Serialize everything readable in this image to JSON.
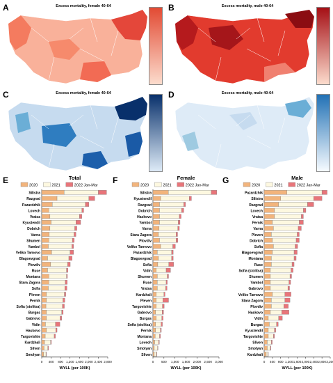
{
  "panels": {
    "A": {
      "label": "A",
      "title": "Excess mortality, female 40-64"
    },
    "B": {
      "label": "B",
      "title": "Excess mortality, male 40-64"
    },
    "C": {
      "label": "C",
      "title": "Excess mortality, female 40-64"
    },
    "D": {
      "label": "D",
      "title": "Excess mortality, male 40-64"
    },
    "E": {
      "label": "E"
    },
    "F": {
      "label": "F"
    },
    "G": {
      "label": "G"
    }
  },
  "colors": {
    "c2020": "#f2b47c",
    "c2021": "#fdf8e0",
    "c2022": "#e8757a",
    "red_light": "#fbd5c6",
    "red_dark": "#a50f15",
    "blue_light": "#deebf7",
    "blue_dark": "#08306b"
  },
  "chart_data": [
    {
      "type": "bar",
      "orientation": "horizontal",
      "stacked": true,
      "title": "Total",
      "xlabel": "WYLL (per 100K)",
      "xlim": [
        0,
        2800
      ],
      "xticks": [
        "0",
        "400",
        "800",
        "1,200",
        "1,600",
        "2,000",
        "2,400",
        "2,800"
      ],
      "legend": [
        "2020",
        "2021",
        "2022 Jan-Mar"
      ],
      "categories": [
        "Silistra",
        "Razgrad",
        "Pazardzhik",
        "Lovech",
        "Vratsa",
        "Kyustendil",
        "Dobrich",
        "Varna",
        "Shumen",
        "Yambol",
        "Veliko Tarnovo",
        "Blagoevgrad",
        "Plovdiv",
        "Ruse",
        "Montana",
        "Stara Zagora",
        "Sofia",
        "Pleven",
        "Pernik",
        "Sofia (stolitsa)",
        "Burgas",
        "Gabrovo",
        "Vidin",
        "Haskovo",
        "Targovishte",
        "Kardzhali",
        "Sliven",
        "Smolyan"
      ],
      "series": [
        {
          "name": "2020",
          "values": [
            950,
            650,
            450,
            300,
            350,
            400,
            350,
            320,
            300,
            280,
            420,
            250,
            380,
            250,
            300,
            300,
            280,
            200,
            200,
            180,
            200,
            200,
            160,
            200,
            150,
            120,
            100,
            80
          ]
        },
        {
          "name": "2021",
          "values": [
            1450,
            1350,
            1400,
            1400,
            1250,
            1050,
            1050,
            1050,
            1000,
            1000,
            780,
            900,
            720,
            800,
            750,
            700,
            700,
            760,
            700,
            700,
            650,
            580,
            420,
            400,
            380,
            260,
            160,
            100
          ]
        },
        {
          "name": "2022 Jan-Mar",
          "values": [
            350,
            250,
            150,
            80,
            100,
            200,
            90,
            80,
            80,
            70,
            150,
            140,
            110,
            60,
            40,
            80,
            90,
            60,
            80,
            80,
            60,
            70,
            190,
            50,
            50,
            30,
            30,
            20
          ]
        }
      ]
    },
    {
      "type": "bar",
      "orientation": "horizontal",
      "stacked": true,
      "title": "Female",
      "xlabel": "WYLL (per 100K)",
      "xlim": [
        0,
        3000
      ],
      "xticks": [
        "0",
        "500",
        "1,000",
        "1,500",
        "2,000",
        "2,500",
        "3,000"
      ],
      "legend": [
        "2020",
        "2021",
        "2022 Jan-Mar"
      ],
      "categories": [
        "Silistra",
        "Kyustendil",
        "Razgrad",
        "Dobrich",
        "Haskovo",
        "Yambol",
        "Varna",
        "Stara Zagora",
        "Plovdiv",
        "Veliko Tarnovo",
        "Pazardzhik",
        "Blagoevgrad",
        "Sofia",
        "Vidin",
        "Shumen",
        "Ruse",
        "Vratsa",
        "Kardzhali",
        "Pleven",
        "Targovishte",
        "Gabrovo",
        "Burgas",
        "Sofia (stolitsa)",
        "Pernik",
        "Montana",
        "Lovech",
        "Smolyan",
        "Sliven"
      ],
      "series": [
        {
          "name": "2020",
          "values": [
            700,
            350,
            300,
            300,
            300,
            300,
            280,
            250,
            300,
            350,
            200,
            250,
            220,
            150,
            200,
            200,
            200,
            150,
            150,
            150,
            120,
            150,
            120,
            120,
            100,
            80,
            60,
            60
          ]
        },
        {
          "name": "2021",
          "values": [
            1950,
            1300,
            1100,
            1000,
            900,
            850,
            850,
            800,
            750,
            550,
            650,
            600,
            500,
            450,
            450,
            400,
            380,
            350,
            300,
            280,
            300,
            250,
            250,
            220,
            200,
            180,
            150,
            100
          ]
        },
        {
          "name": "2022 Jan-Mar",
          "values": [
            250,
            100,
            80,
            100,
            80,
            80,
            70,
            70,
            80,
            120,
            70,
            70,
            220,
            200,
            60,
            50,
            60,
            50,
            260,
            80,
            60,
            60,
            60,
            40,
            40,
            30,
            20,
            20
          ]
        }
      ]
    },
    {
      "type": "bar",
      "orientation": "horizontal",
      "stacked": true,
      "title": "Male",
      "xlabel": "WYLL (per 100K)",
      "xlim": [
        0,
        3200
      ],
      "xticks": [
        "0",
        "400",
        "800",
        "1,200",
        "1,600",
        "2,000",
        "2,400",
        "2,800",
        "3,200"
      ],
      "legend": [
        "2020",
        "2021",
        "2022 Jan-Mar"
      ],
      "categories": [
        "Pazardzhik",
        "Silistra",
        "Razgrad",
        "Lovech",
        "Vratsa",
        "Pernik",
        "Varna",
        "Pleven",
        "Dobrich",
        "Sofia",
        "Blagoevgrad",
        "Montana",
        "Ruse",
        "Sofia (stolitsa)",
        "Shumen",
        "Yambol",
        "Gabrovo",
        "Veliko Tarnovo",
        "Stara Zagora",
        "Plovdiv",
        "Haskovo",
        "Vidin",
        "Burgas",
        "Kyustendil",
        "Targovishte",
        "Sliven",
        "Smolyan",
        "Kardzhali"
      ],
      "series": [
        {
          "name": "2020",
          "values": [
            1100,
            800,
            700,
            500,
            500,
            400,
            450,
            350,
            400,
            450,
            400,
            350,
            350,
            300,
            300,
            300,
            300,
            400,
            350,
            350,
            300,
            200,
            250,
            200,
            200,
            150,
            150,
            100
          ]
        },
        {
          "name": "2021",
          "values": [
            1700,
            1600,
            1400,
            1400,
            1300,
            1300,
            1200,
            1250,
            1150,
            1050,
            1050,
            1100,
            1000,
            1000,
            950,
            900,
            850,
            600,
            650,
            600,
            550,
            500,
            350,
            300,
            250,
            200,
            150,
            80
          ]
        },
        {
          "name": "2022 Jan-Mar",
          "values": [
            250,
            400,
            300,
            120,
            100,
            200,
            150,
            100,
            150,
            120,
            150,
            100,
            100,
            100,
            80,
            80,
            80,
            300,
            250,
            220,
            350,
            180,
            80,
            60,
            50,
            40,
            30,
            20
          ]
        }
      ]
    }
  ]
}
